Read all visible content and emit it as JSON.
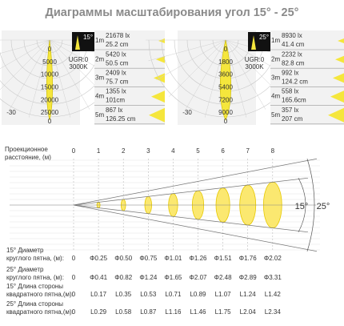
{
  "title": "Диаграммы масштабирования угол 15° - 25°",
  "polar": [
    {
      "badge": "15°",
      "ugr": "UGR:0",
      "cct": "3000K",
      "axis": [
        "0",
        "5000",
        "10000",
        "15000",
        "20000",
        "25000"
      ],
      "left": "-30",
      "bottom": "0",
      "rows": [
        {
          "distance": "1m",
          "lux": "21678 lx",
          "size": "25.2 cm"
        },
        {
          "distance": "2m",
          "lux": "5420 lx",
          "size": "50.5 cm"
        },
        {
          "distance": "3m",
          "lux": "2409 lx",
          "size": "75.7 cm"
        },
        {
          "distance": "4m",
          "lux": "1355 lx",
          "size": "101cm"
        },
        {
          "distance": "5m",
          "lux": "867 lx",
          "size": "126.25 cm"
        }
      ]
    },
    {
      "badge": "25°",
      "ugr": "UGR:0",
      "cct": "3000K",
      "axis": [
        "0",
        "1800",
        "3600",
        "5400",
        "7200",
        "9000"
      ],
      "left": "-30",
      "bottom": "0",
      "rows": [
        {
          "distance": "1m",
          "lux": "8930 lx",
          "size": "41.4 cm"
        },
        {
          "distance": "2m",
          "lux": "2232 lx",
          "size": "82.8 cm"
        },
        {
          "distance": "3m",
          "lux": "992 lx",
          "size": "124.2 cm"
        },
        {
          "distance": "4m",
          "lux": "558 lx",
          "size": "165.6cm"
        },
        {
          "distance": "5m",
          "lux": "357 lx",
          "size": "207 cm"
        }
      ]
    }
  ],
  "projection": {
    "label": [
      "Проекционное",
      "расстояние, (м)"
    ],
    "distances": [
      "0",
      "1",
      "2",
      "3",
      "4",
      "5",
      "6",
      "7",
      "8"
    ],
    "angles": [
      "15°",
      "25°"
    ]
  },
  "table": {
    "rows": [
      {
        "label": [
          "15° Диаметр",
          "круглого пятна, (м):"
        ],
        "values": [
          "0",
          "Φ0.25",
          "Φ0.50",
          "Φ0.75",
          "Φ1.01",
          "Φ1.26",
          "Φ1.51",
          "Φ1.76",
          "Φ2.02"
        ]
      },
      {
        "label": [
          "25° Диаметр",
          "круглого пятна, (м):"
        ],
        "values": [
          "0",
          "Φ0.41",
          "Φ0.82",
          "Φ1.24",
          "Φ1.65",
          "Φ2.07",
          "Φ2.48",
          "Φ2.89",
          "Φ3.31"
        ]
      },
      {
        "label": [
          "15° Длина стороны",
          "квадратного пятна,(м):"
        ],
        "values": [
          "0",
          "L0.17",
          "L0.35",
          "L0.53",
          "L0.71",
          "L0.89",
          "L1.07",
          "L1.24",
          "L1.42"
        ]
      },
      {
        "label": [
          "25° Длина стороны",
          "квадратного пятна,(м):"
        ],
        "values": [
          "0",
          "L0.29",
          "L0.58",
          "L0.87",
          "L1.16",
          "L1.46",
          "L1.75",
          "L2.04",
          "L2.34"
        ]
      }
    ]
  }
}
